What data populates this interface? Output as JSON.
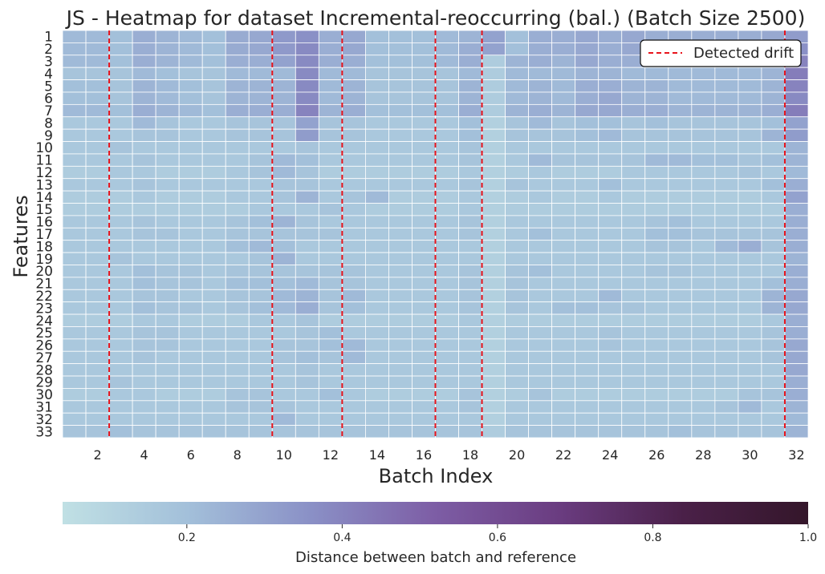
{
  "chart_data": {
    "type": "heatmap",
    "title": "JS - Heatmap for dataset Incremental-reoccurring (bal.) (Batch Size 2500)",
    "xlabel": "Batch Index",
    "ylabel": "Features",
    "x_ticks": [
      "2",
      "4",
      "6",
      "8",
      "10",
      "12",
      "14",
      "16",
      "18",
      "20",
      "22",
      "24",
      "26",
      "28",
      "30",
      "32"
    ],
    "y_ticks": [
      "1",
      "2",
      "3",
      "4",
      "5",
      "6",
      "7",
      "8",
      "9",
      "10",
      "11",
      "12",
      "13",
      "14",
      "15",
      "16",
      "17",
      "18",
      "19",
      "20",
      "21",
      "22",
      "23",
      "24",
      "25",
      "26",
      "27",
      "28",
      "29",
      "30",
      "31",
      "32",
      "33"
    ],
    "x_range": [
      1,
      32
    ],
    "detected_drift": [
      2.5,
      9.5,
      12.5,
      16.5,
      18.5,
      31.5
    ],
    "legend": {
      "label": "Detected drift",
      "placement": "top-right"
    },
    "colorbar": {
      "label": "Distance between batch and reference",
      "ticks": [
        "0.2",
        "0.4",
        "0.6",
        "0.8",
        "1.0"
      ],
      "range": [
        0.04,
        1.0
      ],
      "colors": [
        "#c0e0e4",
        "#a3c0da",
        "#8a90c6",
        "#7d5da5",
        "#6a3c80",
        "#4a2048",
        "#34162a"
      ]
    },
    "values": [
      [
        0.22,
        0.22,
        0.2,
        0.26,
        0.24,
        0.22,
        0.2,
        0.27,
        0.28,
        0.33,
        0.36,
        0.26,
        0.28,
        0.2,
        0.2,
        0.2,
        0.22,
        0.24,
        0.3,
        0.2,
        0.26,
        0.26,
        0.28,
        0.26,
        0.28,
        0.26,
        0.26,
        0.26,
        0.26,
        0.26,
        0.28,
        0.32
      ],
      [
        0.22,
        0.22,
        0.2,
        0.26,
        0.24,
        0.22,
        0.2,
        0.27,
        0.28,
        0.33,
        0.38,
        0.26,
        0.28,
        0.2,
        0.2,
        0.2,
        0.22,
        0.26,
        0.3,
        0.2,
        0.26,
        0.26,
        0.28,
        0.26,
        0.28,
        0.26,
        0.26,
        0.26,
        0.26,
        0.26,
        0.28,
        0.36
      ],
      [
        0.22,
        0.22,
        0.2,
        0.26,
        0.24,
        0.22,
        0.2,
        0.26,
        0.26,
        0.3,
        0.38,
        0.26,
        0.26,
        0.2,
        0.2,
        0.2,
        0.22,
        0.26,
        0.14,
        0.24,
        0.26,
        0.24,
        0.28,
        0.26,
        0.26,
        0.24,
        0.24,
        0.24,
        0.24,
        0.24,
        0.26,
        0.4
      ],
      [
        0.18,
        0.18,
        0.18,
        0.22,
        0.2,
        0.18,
        0.18,
        0.22,
        0.22,
        0.22,
        0.38,
        0.22,
        0.22,
        0.18,
        0.18,
        0.18,
        0.18,
        0.22,
        0.14,
        0.22,
        0.22,
        0.22,
        0.24,
        0.24,
        0.22,
        0.22,
        0.22,
        0.22,
        0.22,
        0.22,
        0.24,
        0.42
      ],
      [
        0.2,
        0.2,
        0.18,
        0.24,
        0.22,
        0.2,
        0.18,
        0.24,
        0.24,
        0.24,
        0.38,
        0.22,
        0.24,
        0.18,
        0.18,
        0.18,
        0.18,
        0.24,
        0.14,
        0.22,
        0.24,
        0.22,
        0.26,
        0.26,
        0.24,
        0.24,
        0.22,
        0.22,
        0.22,
        0.22,
        0.24,
        0.4
      ],
      [
        0.2,
        0.2,
        0.18,
        0.24,
        0.22,
        0.2,
        0.18,
        0.24,
        0.24,
        0.24,
        0.38,
        0.22,
        0.24,
        0.18,
        0.18,
        0.18,
        0.18,
        0.24,
        0.14,
        0.22,
        0.24,
        0.22,
        0.26,
        0.28,
        0.24,
        0.24,
        0.22,
        0.22,
        0.22,
        0.22,
        0.24,
        0.38
      ],
      [
        0.22,
        0.22,
        0.2,
        0.26,
        0.24,
        0.22,
        0.2,
        0.26,
        0.26,
        0.26,
        0.4,
        0.24,
        0.26,
        0.2,
        0.2,
        0.2,
        0.2,
        0.26,
        0.14,
        0.24,
        0.26,
        0.24,
        0.28,
        0.28,
        0.26,
        0.26,
        0.24,
        0.24,
        0.24,
        0.24,
        0.26,
        0.42
      ],
      [
        0.16,
        0.16,
        0.16,
        0.22,
        0.18,
        0.16,
        0.16,
        0.18,
        0.18,
        0.18,
        0.3,
        0.18,
        0.18,
        0.16,
        0.16,
        0.16,
        0.16,
        0.2,
        0.12,
        0.18,
        0.22,
        0.18,
        0.2,
        0.2,
        0.18,
        0.2,
        0.18,
        0.18,
        0.18,
        0.18,
        0.2,
        0.3
      ],
      [
        0.16,
        0.16,
        0.16,
        0.18,
        0.18,
        0.16,
        0.16,
        0.18,
        0.18,
        0.18,
        0.32,
        0.18,
        0.18,
        0.16,
        0.16,
        0.16,
        0.16,
        0.2,
        0.12,
        0.18,
        0.18,
        0.18,
        0.2,
        0.22,
        0.18,
        0.18,
        0.18,
        0.18,
        0.18,
        0.18,
        0.24,
        0.32
      ],
      [
        0.16,
        0.16,
        0.18,
        0.16,
        0.16,
        0.16,
        0.16,
        0.16,
        0.16,
        0.16,
        0.18,
        0.16,
        0.16,
        0.16,
        0.16,
        0.16,
        0.16,
        0.18,
        0.12,
        0.16,
        0.16,
        0.16,
        0.16,
        0.16,
        0.16,
        0.16,
        0.16,
        0.16,
        0.16,
        0.16,
        0.16,
        0.24
      ],
      [
        0.16,
        0.16,
        0.16,
        0.18,
        0.16,
        0.16,
        0.16,
        0.16,
        0.18,
        0.22,
        0.2,
        0.16,
        0.16,
        0.16,
        0.16,
        0.16,
        0.16,
        0.18,
        0.12,
        0.16,
        0.22,
        0.18,
        0.18,
        0.18,
        0.18,
        0.22,
        0.22,
        0.2,
        0.2,
        0.18,
        0.2,
        0.24
      ],
      [
        0.14,
        0.14,
        0.16,
        0.16,
        0.14,
        0.14,
        0.14,
        0.16,
        0.18,
        0.22,
        0.18,
        0.14,
        0.14,
        0.14,
        0.14,
        0.14,
        0.14,
        0.16,
        0.12,
        0.14,
        0.16,
        0.14,
        0.14,
        0.14,
        0.16,
        0.16,
        0.16,
        0.16,
        0.16,
        0.18,
        0.16,
        0.22
      ],
      [
        0.16,
        0.16,
        0.16,
        0.18,
        0.16,
        0.16,
        0.16,
        0.16,
        0.16,
        0.18,
        0.18,
        0.16,
        0.16,
        0.16,
        0.16,
        0.16,
        0.16,
        0.18,
        0.12,
        0.18,
        0.16,
        0.16,
        0.16,
        0.2,
        0.16,
        0.16,
        0.16,
        0.16,
        0.16,
        0.16,
        0.2,
        0.26
      ],
      [
        0.14,
        0.14,
        0.14,
        0.16,
        0.14,
        0.14,
        0.14,
        0.16,
        0.16,
        0.18,
        0.24,
        0.16,
        0.18,
        0.22,
        0.14,
        0.14,
        0.14,
        0.16,
        0.12,
        0.14,
        0.16,
        0.14,
        0.14,
        0.16,
        0.14,
        0.14,
        0.14,
        0.14,
        0.14,
        0.14,
        0.16,
        0.3
      ],
      [
        0.14,
        0.14,
        0.14,
        0.14,
        0.14,
        0.14,
        0.14,
        0.14,
        0.16,
        0.16,
        0.16,
        0.18,
        0.16,
        0.14,
        0.14,
        0.14,
        0.14,
        0.16,
        0.12,
        0.14,
        0.14,
        0.14,
        0.14,
        0.14,
        0.14,
        0.14,
        0.14,
        0.14,
        0.14,
        0.14,
        0.14,
        0.26
      ],
      [
        0.16,
        0.16,
        0.16,
        0.18,
        0.16,
        0.16,
        0.16,
        0.18,
        0.2,
        0.24,
        0.18,
        0.16,
        0.16,
        0.16,
        0.16,
        0.16,
        0.16,
        0.18,
        0.12,
        0.16,
        0.16,
        0.16,
        0.16,
        0.16,
        0.16,
        0.18,
        0.2,
        0.16,
        0.16,
        0.16,
        0.16,
        0.26
      ],
      [
        0.16,
        0.16,
        0.16,
        0.18,
        0.18,
        0.16,
        0.16,
        0.18,
        0.18,
        0.18,
        0.18,
        0.18,
        0.16,
        0.16,
        0.16,
        0.16,
        0.16,
        0.18,
        0.12,
        0.16,
        0.2,
        0.16,
        0.16,
        0.16,
        0.16,
        0.2,
        0.2,
        0.18,
        0.18,
        0.18,
        0.18,
        0.26
      ],
      [
        0.16,
        0.16,
        0.16,
        0.16,
        0.16,
        0.16,
        0.16,
        0.2,
        0.22,
        0.2,
        0.16,
        0.16,
        0.16,
        0.16,
        0.16,
        0.16,
        0.16,
        0.16,
        0.12,
        0.16,
        0.16,
        0.16,
        0.16,
        0.16,
        0.16,
        0.18,
        0.18,
        0.16,
        0.22,
        0.26,
        0.18,
        0.26
      ],
      [
        0.16,
        0.16,
        0.18,
        0.16,
        0.16,
        0.16,
        0.16,
        0.16,
        0.18,
        0.24,
        0.16,
        0.16,
        0.16,
        0.16,
        0.16,
        0.16,
        0.16,
        0.16,
        0.12,
        0.16,
        0.16,
        0.16,
        0.16,
        0.16,
        0.16,
        0.16,
        0.16,
        0.16,
        0.16,
        0.16,
        0.16,
        0.24
      ],
      [
        0.16,
        0.16,
        0.16,
        0.2,
        0.18,
        0.18,
        0.16,
        0.18,
        0.18,
        0.18,
        0.18,
        0.18,
        0.18,
        0.16,
        0.16,
        0.16,
        0.16,
        0.18,
        0.12,
        0.18,
        0.2,
        0.16,
        0.16,
        0.16,
        0.16,
        0.18,
        0.18,
        0.16,
        0.16,
        0.16,
        0.16,
        0.26
      ],
      [
        0.16,
        0.16,
        0.16,
        0.2,
        0.18,
        0.18,
        0.16,
        0.2,
        0.2,
        0.2,
        0.22,
        0.18,
        0.18,
        0.16,
        0.16,
        0.16,
        0.16,
        0.18,
        0.12,
        0.18,
        0.16,
        0.16,
        0.16,
        0.16,
        0.16,
        0.16,
        0.16,
        0.16,
        0.16,
        0.16,
        0.2,
        0.26
      ],
      [
        0.16,
        0.16,
        0.16,
        0.18,
        0.18,
        0.16,
        0.16,
        0.18,
        0.18,
        0.22,
        0.24,
        0.18,
        0.22,
        0.16,
        0.16,
        0.16,
        0.16,
        0.18,
        0.12,
        0.18,
        0.16,
        0.16,
        0.16,
        0.22,
        0.16,
        0.16,
        0.16,
        0.16,
        0.16,
        0.16,
        0.24,
        0.28
      ],
      [
        0.16,
        0.16,
        0.16,
        0.2,
        0.18,
        0.18,
        0.16,
        0.18,
        0.2,
        0.22,
        0.26,
        0.18,
        0.2,
        0.16,
        0.16,
        0.16,
        0.16,
        0.18,
        0.12,
        0.18,
        0.16,
        0.2,
        0.2,
        0.18,
        0.18,
        0.16,
        0.16,
        0.16,
        0.16,
        0.16,
        0.24,
        0.28
      ],
      [
        0.14,
        0.14,
        0.14,
        0.16,
        0.16,
        0.14,
        0.14,
        0.14,
        0.16,
        0.16,
        0.18,
        0.14,
        0.14,
        0.14,
        0.14,
        0.14,
        0.14,
        0.16,
        0.12,
        0.14,
        0.14,
        0.14,
        0.14,
        0.14,
        0.14,
        0.14,
        0.14,
        0.14,
        0.14,
        0.14,
        0.16,
        0.26
      ],
      [
        0.16,
        0.16,
        0.16,
        0.18,
        0.18,
        0.16,
        0.16,
        0.16,
        0.16,
        0.16,
        0.18,
        0.2,
        0.16,
        0.16,
        0.16,
        0.16,
        0.16,
        0.16,
        0.12,
        0.16,
        0.16,
        0.16,
        0.16,
        0.18,
        0.16,
        0.16,
        0.16,
        0.16,
        0.16,
        0.16,
        0.18,
        0.26
      ],
      [
        0.16,
        0.16,
        0.16,
        0.18,
        0.18,
        0.16,
        0.16,
        0.16,
        0.16,
        0.18,
        0.18,
        0.2,
        0.22,
        0.16,
        0.16,
        0.16,
        0.16,
        0.16,
        0.12,
        0.16,
        0.16,
        0.16,
        0.16,
        0.18,
        0.16,
        0.16,
        0.16,
        0.16,
        0.16,
        0.16,
        0.18,
        0.28
      ],
      [
        0.16,
        0.16,
        0.16,
        0.18,
        0.16,
        0.16,
        0.16,
        0.16,
        0.16,
        0.18,
        0.2,
        0.18,
        0.22,
        0.16,
        0.16,
        0.16,
        0.16,
        0.16,
        0.12,
        0.16,
        0.16,
        0.16,
        0.16,
        0.16,
        0.16,
        0.16,
        0.16,
        0.16,
        0.16,
        0.16,
        0.18,
        0.28
      ],
      [
        0.16,
        0.16,
        0.16,
        0.16,
        0.16,
        0.16,
        0.16,
        0.16,
        0.16,
        0.16,
        0.18,
        0.16,
        0.16,
        0.16,
        0.16,
        0.16,
        0.16,
        0.16,
        0.12,
        0.16,
        0.16,
        0.16,
        0.16,
        0.16,
        0.16,
        0.16,
        0.16,
        0.16,
        0.16,
        0.16,
        0.16,
        0.28
      ],
      [
        0.16,
        0.16,
        0.18,
        0.16,
        0.16,
        0.16,
        0.16,
        0.16,
        0.16,
        0.16,
        0.18,
        0.16,
        0.16,
        0.16,
        0.16,
        0.16,
        0.16,
        0.16,
        0.12,
        0.16,
        0.16,
        0.16,
        0.16,
        0.16,
        0.16,
        0.16,
        0.16,
        0.16,
        0.16,
        0.16,
        0.16,
        0.26
      ],
      [
        0.14,
        0.14,
        0.16,
        0.16,
        0.14,
        0.14,
        0.14,
        0.18,
        0.18,
        0.16,
        0.16,
        0.2,
        0.16,
        0.14,
        0.14,
        0.14,
        0.14,
        0.18,
        0.12,
        0.14,
        0.18,
        0.14,
        0.14,
        0.14,
        0.14,
        0.14,
        0.14,
        0.14,
        0.14,
        0.18,
        0.18,
        0.26
      ],
      [
        0.16,
        0.16,
        0.16,
        0.16,
        0.16,
        0.16,
        0.16,
        0.18,
        0.18,
        0.18,
        0.16,
        0.16,
        0.16,
        0.16,
        0.16,
        0.16,
        0.16,
        0.18,
        0.12,
        0.16,
        0.16,
        0.16,
        0.16,
        0.16,
        0.16,
        0.16,
        0.16,
        0.16,
        0.18,
        0.22,
        0.16,
        0.24
      ],
      [
        0.16,
        0.16,
        0.16,
        0.16,
        0.16,
        0.16,
        0.16,
        0.16,
        0.16,
        0.22,
        0.16,
        0.16,
        0.16,
        0.16,
        0.16,
        0.16,
        0.16,
        0.16,
        0.12,
        0.16,
        0.16,
        0.16,
        0.16,
        0.16,
        0.16,
        0.16,
        0.16,
        0.16,
        0.16,
        0.16,
        0.16,
        0.22
      ],
      [
        0.18,
        0.18,
        0.2,
        0.18,
        0.18,
        0.18,
        0.18,
        0.18,
        0.18,
        0.18,
        0.18,
        0.18,
        0.18,
        0.18,
        0.18,
        0.18,
        0.18,
        0.18,
        0.14,
        0.18,
        0.18,
        0.18,
        0.18,
        0.18,
        0.18,
        0.18,
        0.2,
        0.18,
        0.18,
        0.18,
        0.18,
        0.24
      ]
    ]
  }
}
